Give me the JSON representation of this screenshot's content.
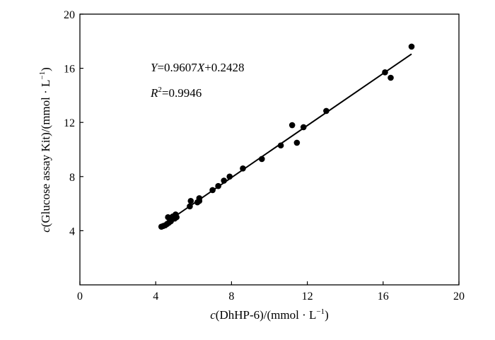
{
  "chart_data": {
    "type": "scatter",
    "title": "",
    "xlabel_var": "c",
    "xlabel_rest": "(DhHP-6)/(mmol · L",
    "xlabel_sup": "−1",
    "xlabel_close": ")",
    "ylabel_var": "c",
    "ylabel_rest": "(Glucose assay Kit)/(mmol · L",
    "ylabel_sup": "−1",
    "ylabel_close": ")",
    "xlim": [
      0,
      20
    ],
    "ylim": [
      0,
      20
    ],
    "xticks": [
      "0",
      "4",
      "8",
      "12",
      "16",
      "20"
    ],
    "yticks": [
      "4",
      "8",
      "12",
      "16",
      "20"
    ],
    "grid": false,
    "points": [
      {
        "x": 4.3,
        "y": 4.3
      },
      {
        "x": 4.4,
        "y": 4.35
      },
      {
        "x": 4.5,
        "y": 4.4
      },
      {
        "x": 4.6,
        "y": 4.5
      },
      {
        "x": 4.7,
        "y": 4.6
      },
      {
        "x": 4.65,
        "y": 5.0
      },
      {
        "x": 4.8,
        "y": 4.7
      },
      {
        "x": 4.9,
        "y": 5.05
      },
      {
        "x": 5.0,
        "y": 4.9
      },
      {
        "x": 5.05,
        "y": 5.2
      },
      {
        "x": 5.1,
        "y": 5.0
      },
      {
        "x": 5.8,
        "y": 5.8
      },
      {
        "x": 5.85,
        "y": 6.2
      },
      {
        "x": 6.2,
        "y": 6.1
      },
      {
        "x": 6.3,
        "y": 6.4
      },
      {
        "x": 6.3,
        "y": 6.2
      },
      {
        "x": 7.0,
        "y": 7.0
      },
      {
        "x": 7.3,
        "y": 7.3
      },
      {
        "x": 7.6,
        "y": 7.7
      },
      {
        "x": 7.9,
        "y": 8.0
      },
      {
        "x": 8.6,
        "y": 8.6
      },
      {
        "x": 9.6,
        "y": 9.3
      },
      {
        "x": 10.6,
        "y": 10.3
      },
      {
        "x": 11.2,
        "y": 11.8
      },
      {
        "x": 11.45,
        "y": 10.5
      },
      {
        "x": 11.8,
        "y": 11.65
      },
      {
        "x": 13.0,
        "y": 12.85
      },
      {
        "x": 16.1,
        "y": 15.7
      },
      {
        "x": 16.4,
        "y": 15.3
      },
      {
        "x": 17.5,
        "y": 17.6
      }
    ],
    "fit_line": {
      "slope": 0.9607,
      "intercept": 0.2428,
      "x_range": [
        4.3,
        17.5
      ]
    },
    "annotations": {
      "eq_Y": "Y",
      "eq_mid": "=0.9607",
      "eq_X": "X",
      "eq_tail": "+0.2428",
      "r2_R": "R",
      "r2_sup": "2",
      "r2_tail": "=0.9946"
    },
    "colors": {
      "points": "#000000",
      "line": "#000000",
      "axes": "#000000"
    }
  }
}
